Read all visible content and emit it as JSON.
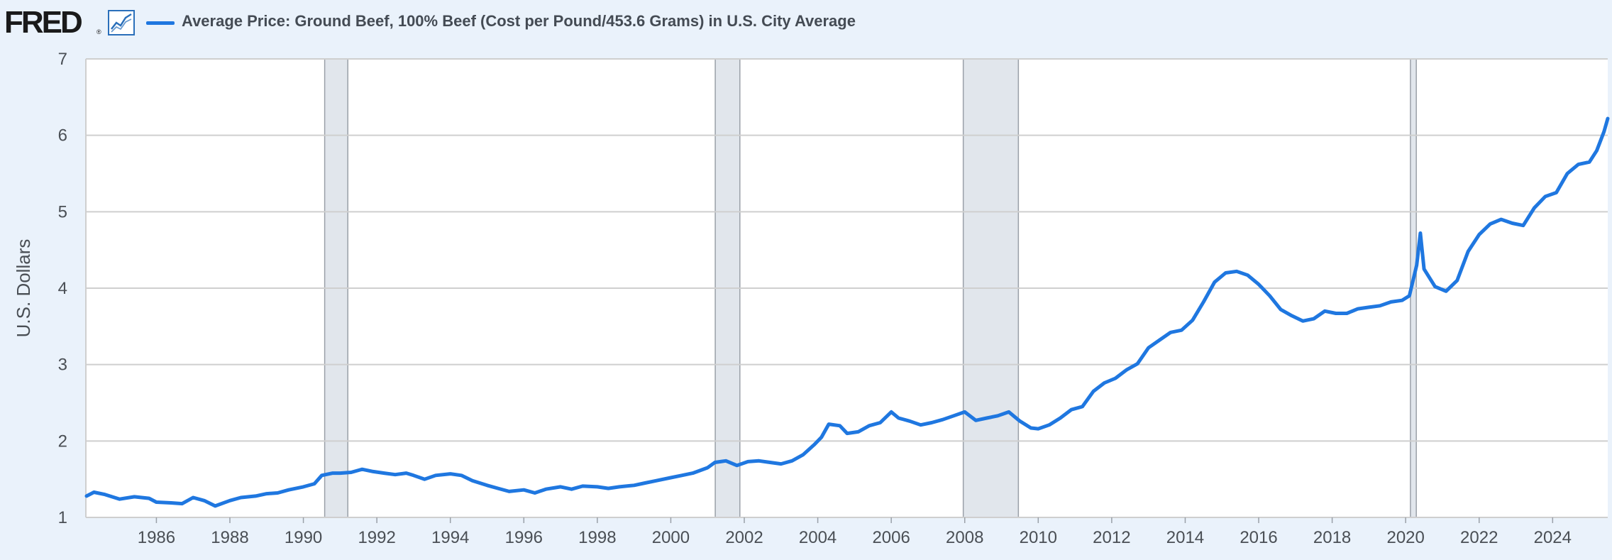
{
  "header": {
    "logo_text": "FRED",
    "logo_reg": "®",
    "logo_icon": "line-chart-icon",
    "title": "Average Price: Ground Beef, 100% Beef (Cost per Pound/453.6 Grams) in U.S. City Average"
  },
  "colors": {
    "series": "#1f77e0",
    "recession": "#e1e6ec",
    "grid": "#cfcfcf",
    "page_bg": "#eaf2fb",
    "plot_bg": "#ffffff"
  },
  "chart_data": {
    "type": "line",
    "title": "Average Price: Ground Beef, 100% Beef (Cost per Pound/453.6 Grams) in U.S. City Average",
    "xlabel": "",
    "ylabel": "U.S. Dollars",
    "xlim": [
      1984.08,
      2025.5
    ],
    "ylim": [
      1,
      7
    ],
    "y_ticks": [
      1,
      2,
      3,
      4,
      5,
      6,
      7
    ],
    "x_ticks": [
      1986,
      1988,
      1990,
      1992,
      1994,
      1996,
      1998,
      2000,
      2002,
      2004,
      2006,
      2008,
      2010,
      2012,
      2014,
      2016,
      2018,
      2020,
      2022,
      2024
    ],
    "grid": "horizontal",
    "recessions": [
      [
        1990.58,
        1991.21
      ],
      [
        2001.21,
        2001.88
      ],
      [
        2007.96,
        2009.46
      ],
      [
        2020.13,
        2020.29
      ]
    ],
    "series": [
      {
        "points": [
          [
            1984.1,
            1.28
          ],
          [
            1984.3,
            1.33
          ],
          [
            1984.6,
            1.3
          ],
          [
            1985.0,
            1.24
          ],
          [
            1985.4,
            1.27
          ],
          [
            1985.8,
            1.25
          ],
          [
            1986.0,
            1.2
          ],
          [
            1986.4,
            1.19
          ],
          [
            1986.7,
            1.18
          ],
          [
            1987.0,
            1.26
          ],
          [
            1987.3,
            1.22
          ],
          [
            1987.6,
            1.15
          ],
          [
            1988.0,
            1.22
          ],
          [
            1988.3,
            1.26
          ],
          [
            1988.7,
            1.28
          ],
          [
            1989.0,
            1.31
          ],
          [
            1989.3,
            1.32
          ],
          [
            1989.6,
            1.36
          ],
          [
            1990.0,
            1.4
          ],
          [
            1990.3,
            1.44
          ],
          [
            1990.5,
            1.55
          ],
          [
            1990.8,
            1.58
          ],
          [
            1991.0,
            1.58
          ],
          [
            1991.3,
            1.59
          ],
          [
            1991.6,
            1.63
          ],
          [
            1991.9,
            1.6
          ],
          [
            1992.2,
            1.58
          ],
          [
            1992.5,
            1.56
          ],
          [
            1992.8,
            1.58
          ],
          [
            1993.0,
            1.55
          ],
          [
            1993.3,
            1.5
          ],
          [
            1993.6,
            1.55
          ],
          [
            1994.0,
            1.57
          ],
          [
            1994.3,
            1.55
          ],
          [
            1994.6,
            1.48
          ],
          [
            1995.0,
            1.42
          ],
          [
            1995.3,
            1.38
          ],
          [
            1995.6,
            1.34
          ],
          [
            1996.0,
            1.36
          ],
          [
            1996.3,
            1.32
          ],
          [
            1996.6,
            1.37
          ],
          [
            1997.0,
            1.4
          ],
          [
            1997.3,
            1.37
          ],
          [
            1997.6,
            1.41
          ],
          [
            1998.0,
            1.4
          ],
          [
            1998.3,
            1.38
          ],
          [
            1998.6,
            1.4
          ],
          [
            1999.0,
            1.42
          ],
          [
            1999.3,
            1.45
          ],
          [
            1999.6,
            1.48
          ],
          [
            2000.0,
            1.52
          ],
          [
            2000.3,
            1.55
          ],
          [
            2000.6,
            1.58
          ],
          [
            2001.0,
            1.65
          ],
          [
            2001.2,
            1.72
          ],
          [
            2001.5,
            1.74
          ],
          [
            2001.8,
            1.68
          ],
          [
            2002.1,
            1.73
          ],
          [
            2002.4,
            1.74
          ],
          [
            2002.7,
            1.72
          ],
          [
            2003.0,
            1.7
          ],
          [
            2003.3,
            1.74
          ],
          [
            2003.6,
            1.82
          ],
          [
            2003.9,
            1.95
          ],
          [
            2004.1,
            2.05
          ],
          [
            2004.3,
            2.22
          ],
          [
            2004.6,
            2.2
          ],
          [
            2004.8,
            2.1
          ],
          [
            2005.1,
            2.12
          ],
          [
            2005.4,
            2.2
          ],
          [
            2005.7,
            2.24
          ],
          [
            2006.0,
            2.38
          ],
          [
            2006.2,
            2.3
          ],
          [
            2006.5,
            2.26
          ],
          [
            2006.8,
            2.21
          ],
          [
            2007.1,
            2.24
          ],
          [
            2007.4,
            2.28
          ],
          [
            2007.7,
            2.33
          ],
          [
            2008.0,
            2.38
          ],
          [
            2008.3,
            2.27
          ],
          [
            2008.6,
            2.3
          ],
          [
            2008.9,
            2.33
          ],
          [
            2009.2,
            2.38
          ],
          [
            2009.5,
            2.26
          ],
          [
            2009.8,
            2.17
          ],
          [
            2010.0,
            2.16
          ],
          [
            2010.3,
            2.21
          ],
          [
            2010.6,
            2.3
          ],
          [
            2010.9,
            2.41
          ],
          [
            2011.2,
            2.45
          ],
          [
            2011.5,
            2.65
          ],
          [
            2011.8,
            2.76
          ],
          [
            2012.1,
            2.82
          ],
          [
            2012.4,
            2.93
          ],
          [
            2012.7,
            3.01
          ],
          [
            2013.0,
            3.22
          ],
          [
            2013.3,
            3.32
          ],
          [
            2013.6,
            3.42
          ],
          [
            2013.9,
            3.45
          ],
          [
            2014.2,
            3.58
          ],
          [
            2014.5,
            3.82
          ],
          [
            2014.8,
            4.08
          ],
          [
            2015.1,
            4.2
          ],
          [
            2015.4,
            4.22
          ],
          [
            2015.7,
            4.17
          ],
          [
            2016.0,
            4.05
          ],
          [
            2016.3,
            3.9
          ],
          [
            2016.6,
            3.72
          ],
          [
            2016.9,
            3.64
          ],
          [
            2017.2,
            3.57
          ],
          [
            2017.5,
            3.6
          ],
          [
            2017.8,
            3.7
          ],
          [
            2018.1,
            3.67
          ],
          [
            2018.4,
            3.67
          ],
          [
            2018.7,
            3.73
          ],
          [
            2019.0,
            3.75
          ],
          [
            2019.3,
            3.77
          ],
          [
            2019.6,
            3.82
          ],
          [
            2019.9,
            3.84
          ],
          [
            2020.1,
            3.9
          ],
          [
            2020.3,
            4.3
          ],
          [
            2020.4,
            4.72
          ],
          [
            2020.5,
            4.25
          ],
          [
            2020.8,
            4.02
          ],
          [
            2021.1,
            3.96
          ],
          [
            2021.4,
            4.1
          ],
          [
            2021.7,
            4.48
          ],
          [
            2022.0,
            4.7
          ],
          [
            2022.3,
            4.84
          ],
          [
            2022.6,
            4.9
          ],
          [
            2022.9,
            4.85
          ],
          [
            2023.2,
            4.82
          ],
          [
            2023.5,
            5.05
          ],
          [
            2023.8,
            5.2
          ],
          [
            2024.1,
            5.25
          ],
          [
            2024.4,
            5.5
          ],
          [
            2024.7,
            5.62
          ],
          [
            2025.0,
            5.65
          ],
          [
            2025.2,
            5.8
          ],
          [
            2025.4,
            6.05
          ],
          [
            2025.5,
            6.22
          ]
        ]
      }
    ]
  }
}
